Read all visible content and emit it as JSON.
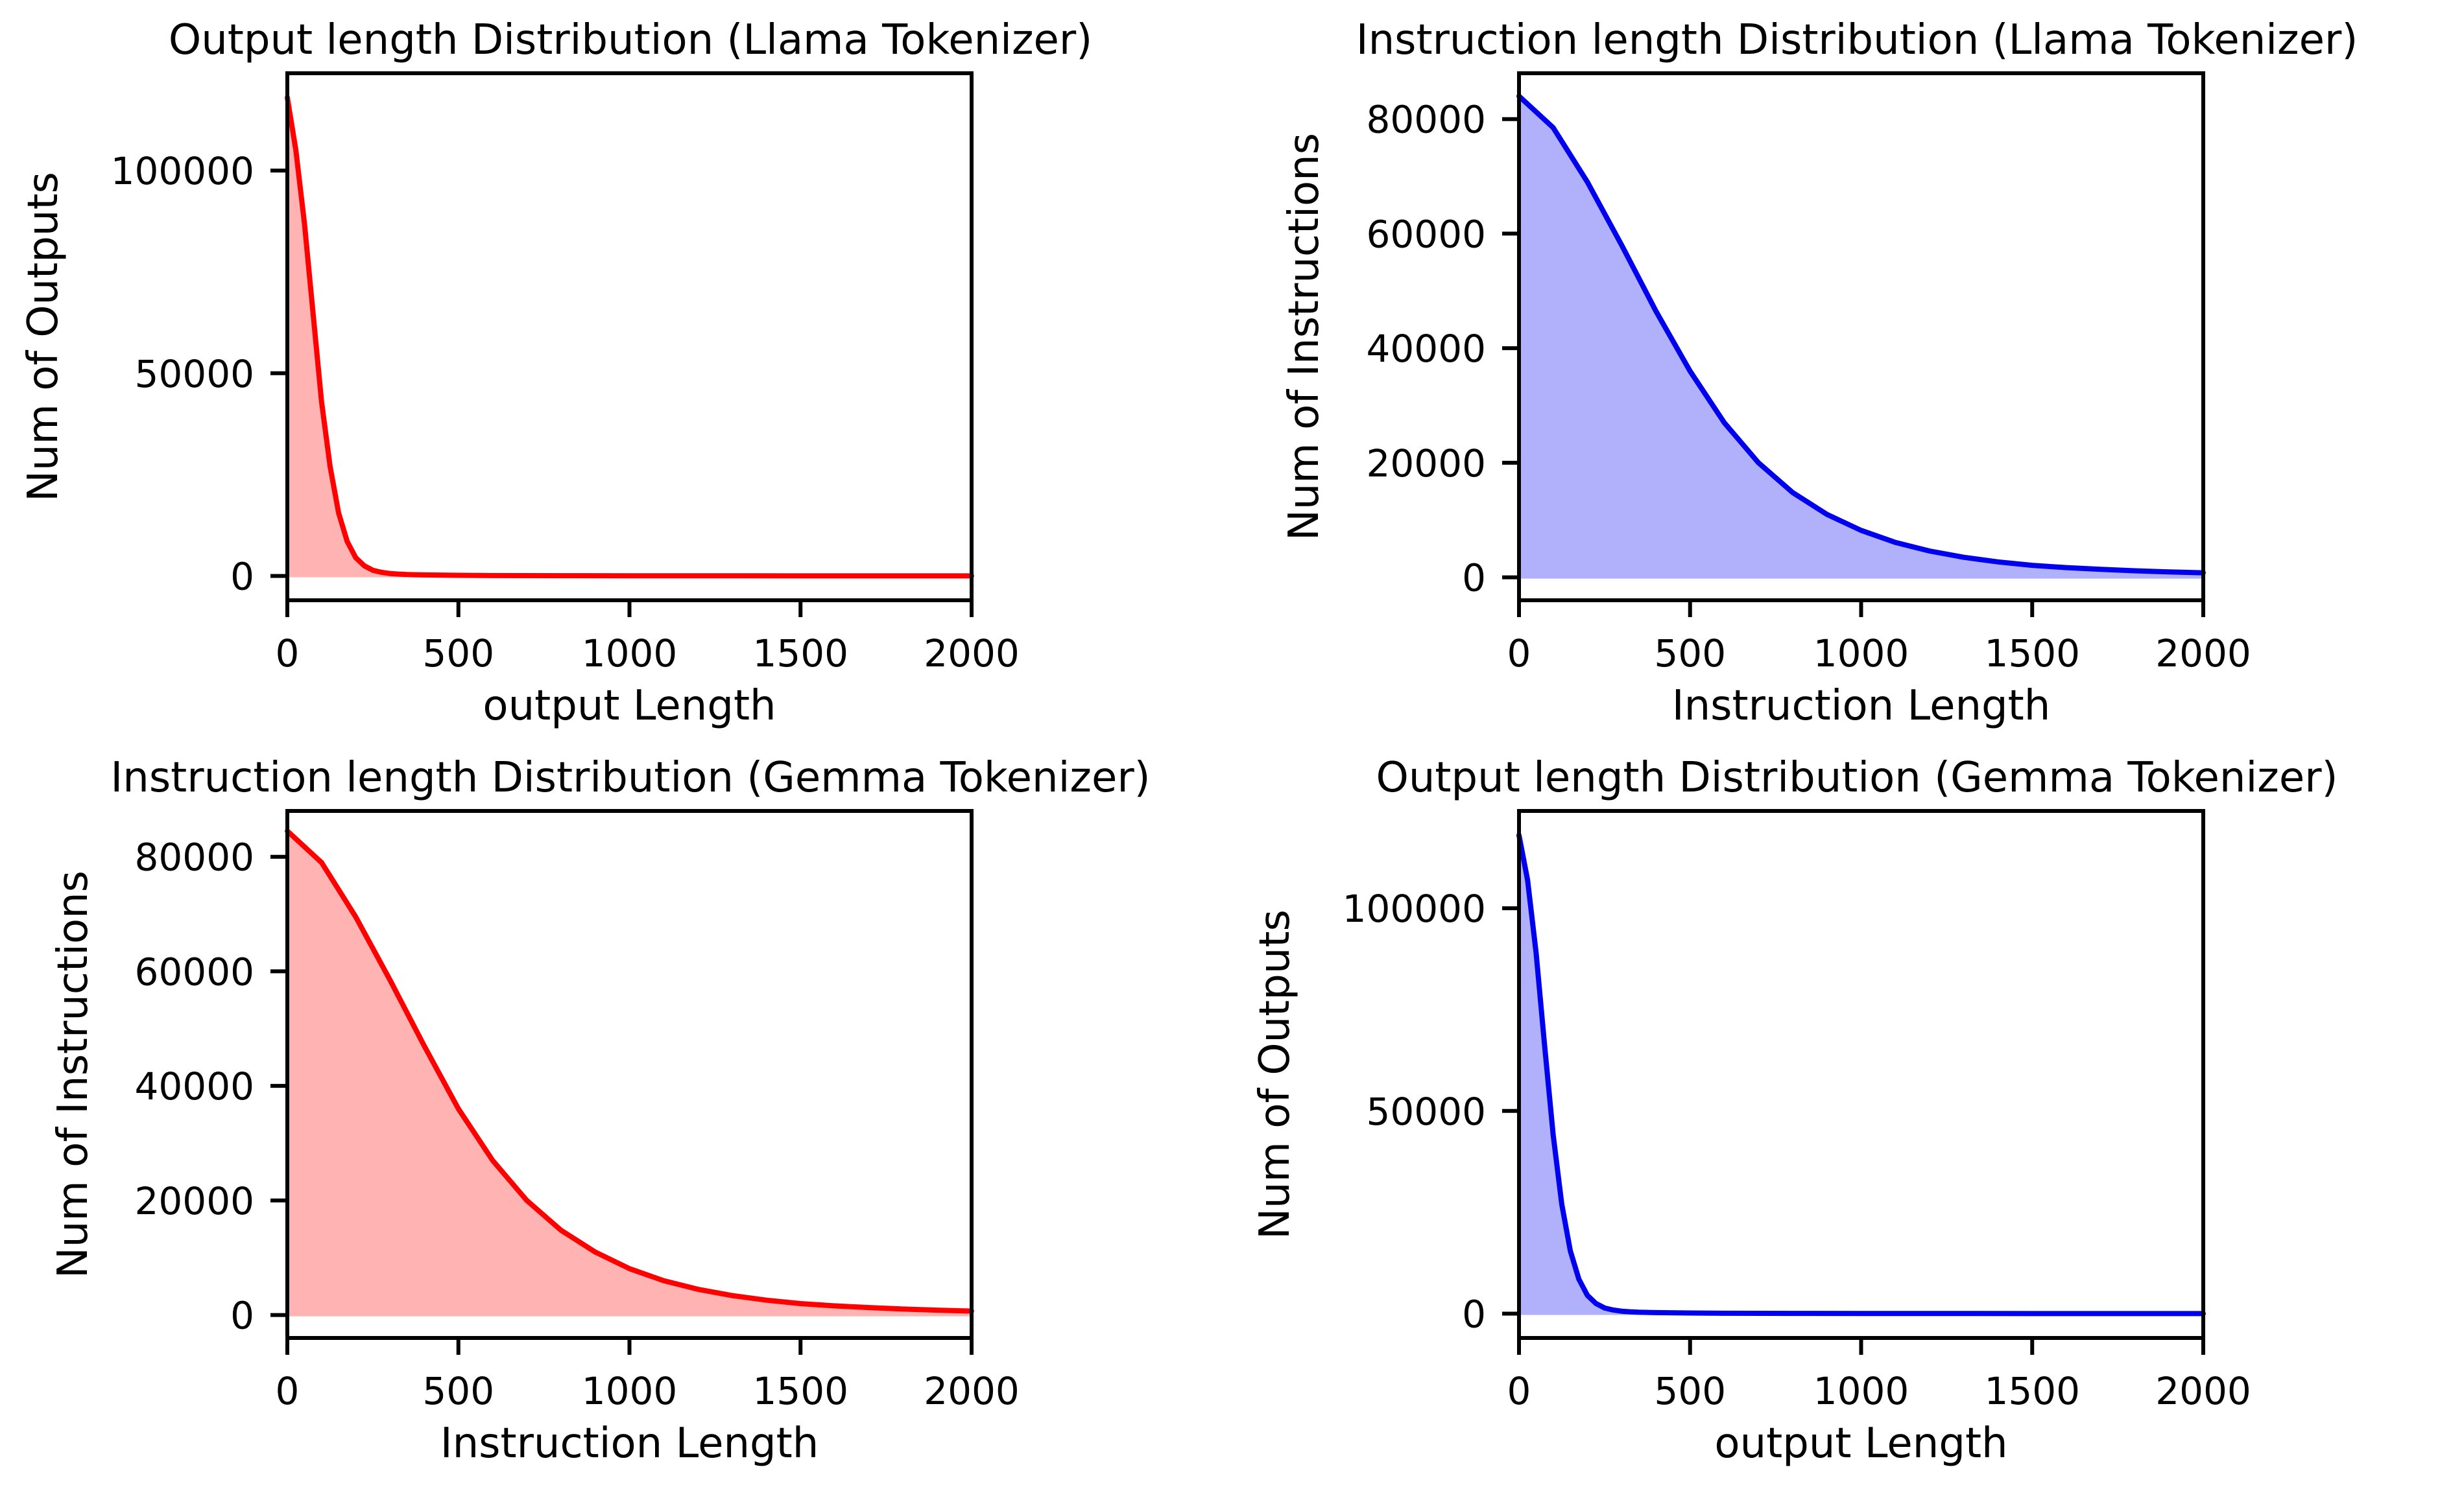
{
  "chart_data": [
    {
      "type": "area",
      "title": "Output length Distribution (Llama Tokenizer)",
      "xlabel": "output Length",
      "ylabel": "Num of Outputs",
      "xlim": [
        0,
        2000
      ],
      "ylim": [
        -6000,
        124000
      ],
      "xticks": [
        0,
        500,
        1000,
        1500,
        2000
      ],
      "yticks": [
        0,
        50000,
        100000
      ],
      "color": "#ff0000",
      "fill_color": "#ffb3b3",
      "grid": false,
      "series": [
        {
          "x": [
            0,
            25,
            50,
            75,
            100,
            125,
            150,
            175,
            200,
            225,
            250,
            275,
            300,
            325,
            350,
            400,
            500,
            600,
            800,
            1000,
            1500,
            2000
          ],
          "values": [
            118000,
            105000,
            87000,
            65000,
            43000,
            27000,
            15500,
            8500,
            4500,
            2500,
            1400,
            900,
            600,
            450,
            350,
            250,
            150,
            100,
            60,
            40,
            20,
            10
          ]
        }
      ]
    },
    {
      "type": "area",
      "title": "Instruction length Distribution (Llama Tokenizer)",
      "xlabel": "Instruction Length",
      "ylabel": "Num of Instructions",
      "xlim": [
        0,
        2000
      ],
      "ylim": [
        -4000,
        88000
      ],
      "xticks": [
        0,
        500,
        1000,
        1500,
        2000
      ],
      "yticks": [
        0,
        20000,
        40000,
        60000,
        80000
      ],
      "color": "#0000ee",
      "fill_color": "#b0b0fb",
      "grid": false,
      "series": [
        {
          "x": [
            0,
            100,
            200,
            300,
            400,
            500,
            600,
            700,
            800,
            900,
            1000,
            1100,
            1200,
            1300,
            1400,
            1500,
            1600,
            1700,
            1800,
            1900,
            2000
          ],
          "values": [
            84000,
            78500,
            69000,
            58000,
            46500,
            36000,
            27000,
            20000,
            14800,
            11000,
            8200,
            6100,
            4600,
            3500,
            2700,
            2100,
            1700,
            1400,
            1150,
            950,
            800
          ]
        }
      ]
    },
    {
      "type": "area",
      "title": "Instruction length Distribution (Gemma Tokenizer)",
      "xlabel": "Instruction Length",
      "ylabel": "Num of Instructions",
      "xlim": [
        0,
        2000
      ],
      "ylim": [
        -4000,
        88000
      ],
      "xticks": [
        0,
        500,
        1000,
        1500,
        2000
      ],
      "yticks": [
        0,
        20000,
        40000,
        60000,
        80000
      ],
      "color": "#ff0000",
      "fill_color": "#ffb3b3",
      "grid": false,
      "series": [
        {
          "x": [
            0,
            100,
            200,
            300,
            400,
            500,
            600,
            700,
            800,
            900,
            1000,
            1100,
            1200,
            1300,
            1400,
            1500,
            1600,
            1700,
            1800,
            1900,
            2000
          ],
          "values": [
            84500,
            79000,
            69500,
            58500,
            47000,
            36000,
            27000,
            20000,
            14800,
            11000,
            8100,
            6000,
            4500,
            3400,
            2600,
            2000,
            1600,
            1300,
            1050,
            850,
            700
          ]
        }
      ]
    },
    {
      "type": "area",
      "title": "Output length Distribution (Gemma Tokenizer)",
      "xlabel": "output Length",
      "ylabel": "Num of Outputs",
      "xlim": [
        0,
        2000
      ],
      "ylim": [
        -6000,
        124000
      ],
      "xticks": [
        0,
        500,
        1000,
        1500,
        2000
      ],
      "yticks": [
        0,
        50000,
        100000
      ],
      "color": "#0000ee",
      "fill_color": "#b0b0fb",
      "grid": false,
      "series": [
        {
          "x": [
            0,
            25,
            50,
            75,
            100,
            125,
            150,
            175,
            200,
            225,
            250,
            275,
            300,
            325,
            350,
            400,
            500,
            600,
            800,
            1000,
            1500,
            2000
          ],
          "values": [
            118000,
            107000,
            89000,
            66000,
            44000,
            27000,
            15500,
            8500,
            4500,
            2500,
            1400,
            900,
            600,
            450,
            350,
            250,
            150,
            100,
            60,
            40,
            20,
            10
          ]
        }
      ]
    }
  ]
}
